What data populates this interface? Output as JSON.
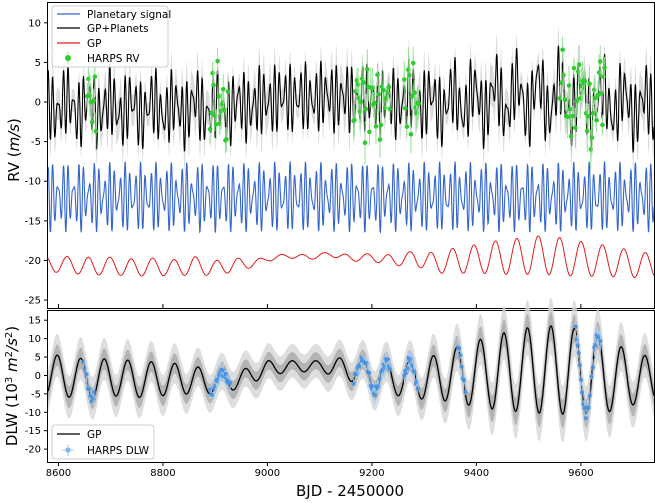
{
  "chart_data": [
    {
      "type": "line",
      "panel": "top",
      "ylabel": "RV (m/s)",
      "xlim": [
        8580,
        9740
      ],
      "ylim": [
        -26,
        12.5
      ],
      "yticks": [
        10,
        5,
        0,
        -5,
        -10,
        -15,
        -20,
        -25
      ],
      "legend": {
        "position": "top-left",
        "entries": [
          {
            "label": "Planetary signal",
            "color": "#3366cc",
            "kind": "line"
          },
          {
            "label": "GP+Planets",
            "color": "#000000",
            "kind": "line"
          },
          {
            "label": "GP",
            "color": "#dd1c1c",
            "kind": "line"
          },
          {
            "label": "HARPS RV",
            "color": "#2ecc2e",
            "kind": "errorbar"
          }
        ]
      },
      "series": [
        {
          "name": "GP+Planets",
          "color": "#000000",
          "offset_ms": 0,
          "amplitude_ms": 4.5,
          "band": "#bdbdbd"
        },
        {
          "name": "Planetary signal",
          "color": "#3366cc",
          "offset_ms": -12,
          "amplitude_ms": 4.5
        },
        {
          "name": "GP",
          "color": "#dd1c1c",
          "x": [
            8620,
            8660,
            8700,
            8740,
            8780,
            8820,
            8860,
            8900,
            8940,
            8980,
            9000,
            9040,
            9080,
            9120,
            9160,
            9200,
            9240,
            9280,
            9320,
            9360,
            9400,
            9440,
            9480,
            9520,
            9560,
            9600,
            9640,
            9680,
            9720
          ],
          "y": [
            -20.5,
            -20.8,
            -20.6,
            -21.0,
            -20.7,
            -21.0,
            -20.6,
            -21.0,
            -20.5,
            -20.3,
            -19.8,
            -19.4,
            -19.6,
            -19.2,
            -19.7,
            -19.6,
            -20.0,
            -19.7,
            -20.3,
            -20.0,
            -19.8,
            -19.6,
            -19.5,
            -19.3,
            -19.5,
            -19.8,
            -20.0,
            -20.3,
            -20.6
          ],
          "note_amplitude": [
            1.0,
            1.2,
            1.0,
            1.2,
            1.0,
            1.1,
            1.1,
            1.0,
            0.8,
            0.5,
            0.3,
            0.3,
            0.3,
            0.3,
            0.4,
            0.5,
            0.7,
            0.9,
            1.3,
            1.6,
            1.8,
            2.1,
            2.3,
            2.4,
            2.4,
            2.2,
            2.0,
            1.8,
            1.6
          ]
        },
        {
          "name": "HARPS RV",
          "color": "#2ecc2e",
          "clusters": [
            [
              8655,
              8672
            ],
            [
              8890,
              8925
            ],
            [
              9165,
              9235
            ],
            [
              9262,
              9290
            ],
            [
              9560,
              9648
            ]
          ],
          "y_range": [
            -7,
            11
          ]
        }
      ]
    },
    {
      "type": "line",
      "panel": "bottom",
      "xlabel": "BJD - 2450000",
      "ylabel": "DLW (10³ m²/s²)",
      "xlim": [
        8580,
        9740
      ],
      "ylim": [
        -23.5,
        17.5
      ],
      "xticks": [
        8600,
        8800,
        9000,
        9200,
        9400,
        9600
      ],
      "yticks": [
        15,
        10,
        5,
        0,
        -5,
        -10,
        -15,
        -20
      ],
      "legend": {
        "position": "bottom-left",
        "entries": [
          {
            "label": "GP",
            "color": "#000000",
            "kind": "line"
          },
          {
            "label": "HARPS DLW",
            "color": "#7fb8ee",
            "kind": "errorbar"
          }
        ]
      },
      "series": [
        {
          "name": "GP",
          "color": "#000000",
          "period_days": 45,
          "x": [
            8600,
            8650,
            8700,
            8750,
            8800,
            8850,
            8900,
            8950,
            9000,
            9050,
            9100,
            9150,
            9200,
            9250,
            9300,
            9350,
            9400,
            9450,
            9500,
            9550,
            9600,
            9650,
            9700,
            9740
          ],
          "amplitude": [
            5.5,
            5.5,
            5,
            5,
            4.5,
            4,
            3,
            2.5,
            2,
            1.5,
            1.5,
            3,
            4,
            4.5,
            5.5,
            7,
            9,
            10.5,
            11.5,
            12,
            11.5,
            10,
            7,
            6
          ],
          "center": [
            0,
            -1,
            -0.5,
            -1,
            -1,
            -1,
            -2,
            -1,
            2,
            2.5,
            2.5,
            2,
            0,
            -1,
            -1,
            0,
            0.5,
            1,
            1.5,
            1.5,
            1,
            0,
            -1,
            -1
          ]
        },
        {
          "name": "HARPS DLW",
          "color": "#3f8fe6",
          "clusters": [
            [
              8648,
              8670
            ],
            [
              8890,
              8930
            ],
            [
              9165,
              9235
            ],
            [
              9262,
              9290
            ],
            [
              9365,
              9380
            ],
            [
              9590,
              9640
            ]
          ]
        }
      ]
    }
  ]
}
